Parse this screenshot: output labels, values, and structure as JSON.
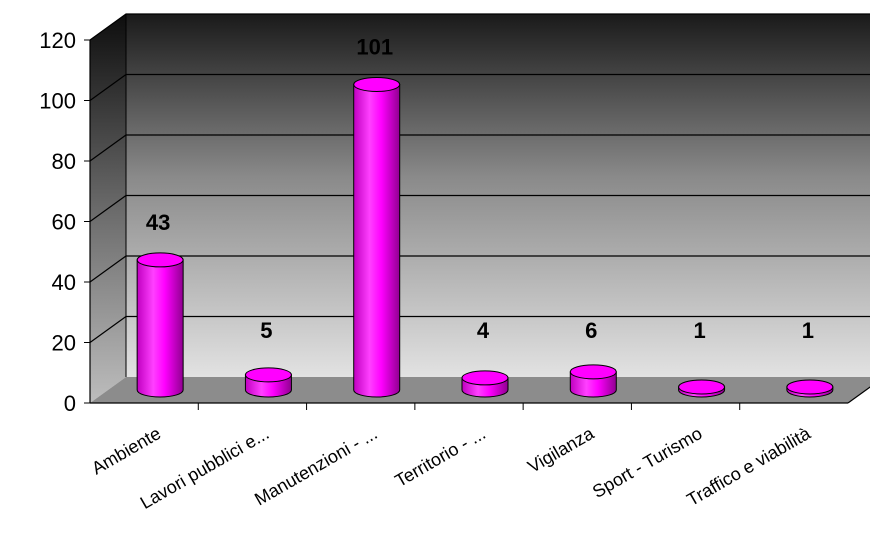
{
  "chart_data": {
    "type": "bar",
    "style": "3d-cylinder",
    "categories": [
      "Ambiente",
      "Lavori pubblici e...",
      "Manutenzioni - ...",
      "Territorio - ...",
      "Vigilanza",
      "Sport - Turismo",
      "Traffico e viabilità"
    ],
    "values": [
      43,
      5,
      101,
      4,
      6,
      1,
      1
    ],
    "data_labels": [
      "43",
      "5",
      "101",
      "4",
      "6",
      "1",
      "1"
    ],
    "ylim": [
      0,
      120
    ],
    "yticks": [
      "0",
      "20",
      "40",
      "60",
      "80",
      "100",
      "120"
    ],
    "grid": true,
    "legend": "none",
    "colors": {
      "bar": "#ff00ff",
      "bar_shade": "#990099",
      "back_wall_top": "#1a1a1a",
      "back_wall_bottom": "#dddddd",
      "floor": "#8c8c8c"
    }
  }
}
